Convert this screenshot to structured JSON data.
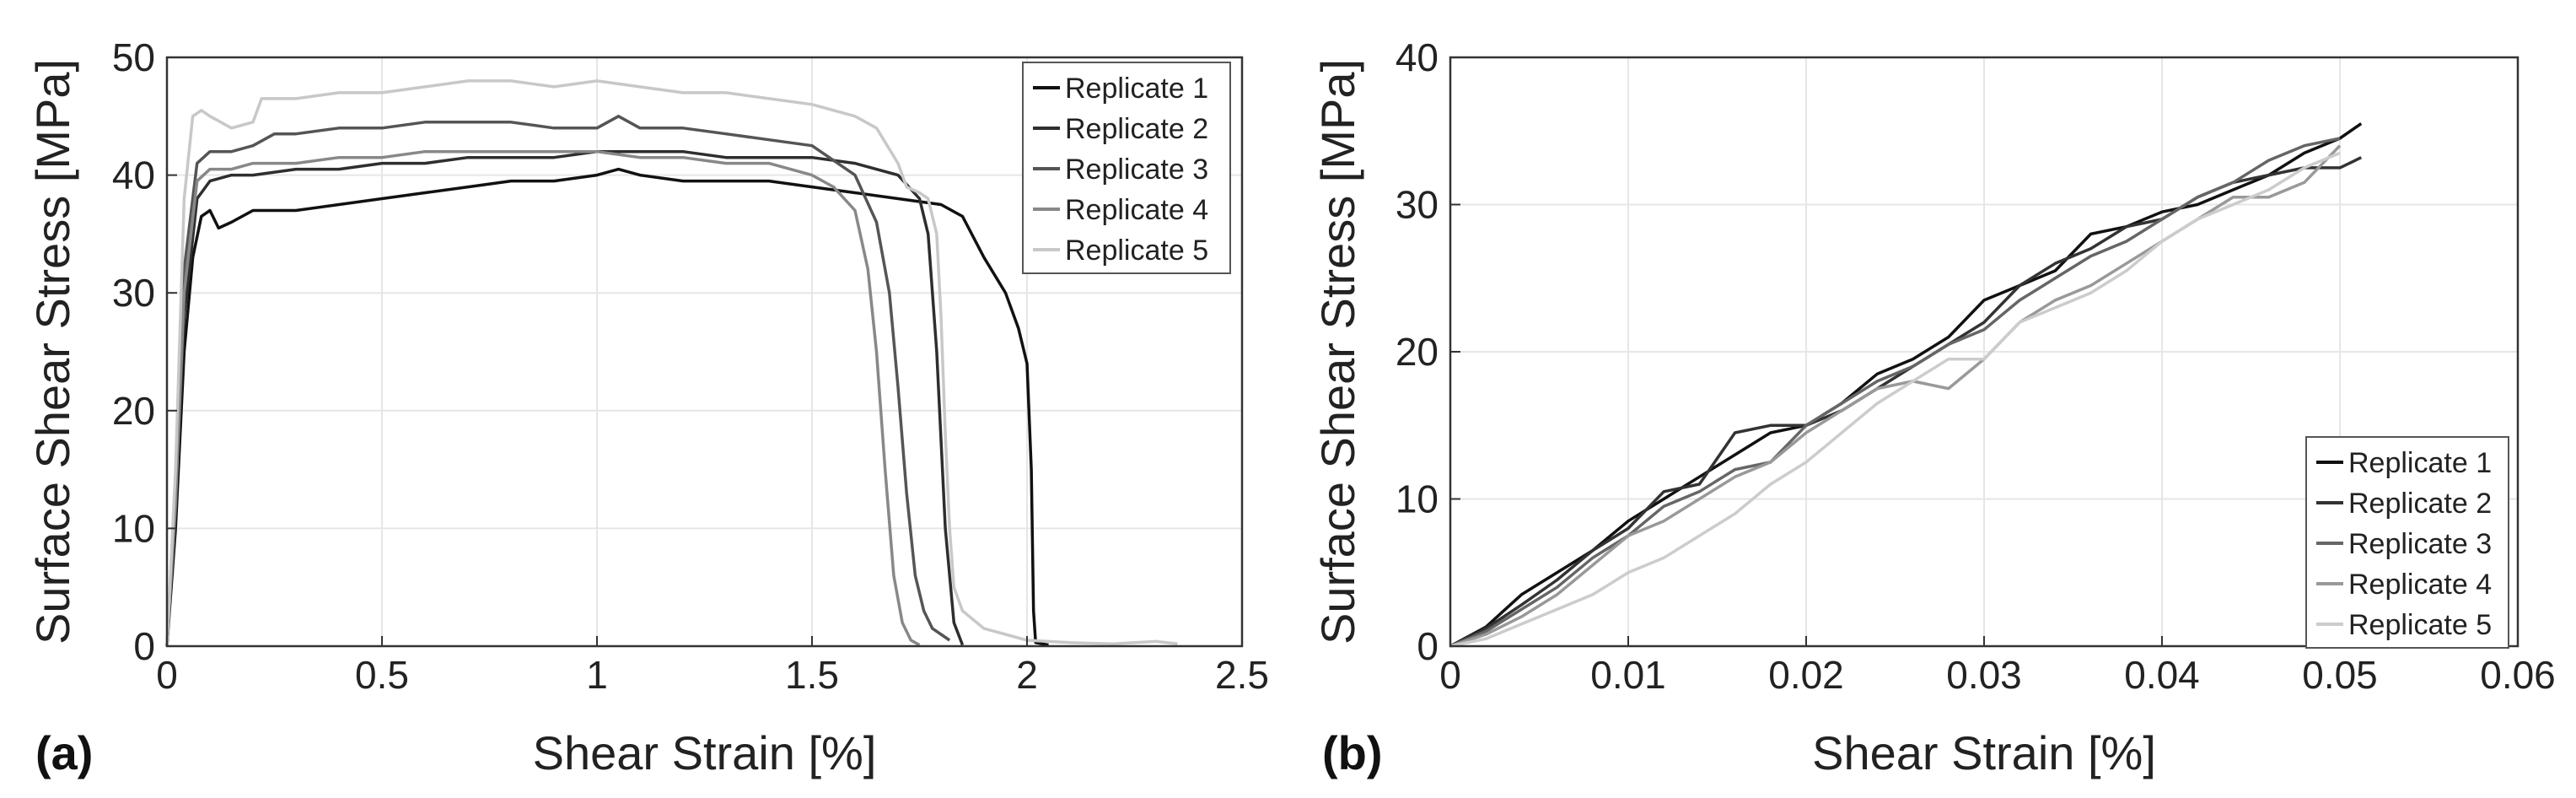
{
  "chart_data": [
    {
      "panel_label": "(a)",
      "type": "line",
      "xlabel": "Shear Strain [%]",
      "ylabel": "Surface Shear Stress [MPa]",
      "xlim": [
        0,
        2.5
      ],
      "ylim": [
        0,
        50
      ],
      "xticks": [
        "0",
        "0.5",
        "1",
        "1.5",
        "2",
        "2.5"
      ],
      "yticks": [
        "0",
        "10",
        "20",
        "30",
        "40",
        "50"
      ],
      "grid": true,
      "legend_position": "top-right",
      "series": [
        {
          "name": "Replicate 1",
          "color": "#111111",
          "x": [
            0,
            0.02,
            0.04,
            0.06,
            0.08,
            0.1,
            0.12,
            0.15,
            0.2,
            0.3,
            0.4,
            0.5,
            0.6,
            0.7,
            0.8,
            0.9,
            1.0,
            1.05,
            1.1,
            1.2,
            1.3,
            1.4,
            1.5,
            1.6,
            1.7,
            1.8,
            1.85,
            1.9,
            1.95,
            1.98,
            2.0,
            2.01,
            2.015,
            2.02,
            2.05
          ],
          "y": [
            0,
            10,
            25,
            33,
            36.5,
            37,
            35.5,
            36,
            37,
            37,
            37.5,
            38,
            38.5,
            39,
            39.5,
            39.5,
            40,
            40.5,
            40,
            39.5,
            39.5,
            39.5,
            39,
            38.5,
            38,
            37.5,
            36.5,
            33,
            30,
            27,
            24,
            15,
            3,
            0.3,
            0.1
          ]
        },
        {
          "name": "Replicate 2",
          "color": "#2e2e2e",
          "x": [
            0,
            0.02,
            0.04,
            0.07,
            0.1,
            0.15,
            0.2,
            0.3,
            0.4,
            0.5,
            0.6,
            0.7,
            0.8,
            0.9,
            1.0,
            1.1,
            1.2,
            1.3,
            1.4,
            1.5,
            1.6,
            1.7,
            1.75,
            1.77,
            1.79,
            1.81,
            1.83,
            1.85
          ],
          "y": [
            0,
            12,
            28,
            38,
            39.5,
            40,
            40,
            40.5,
            40.5,
            41,
            41,
            41.5,
            41.5,
            41.5,
            42,
            42,
            42,
            41.5,
            41.5,
            41.5,
            41,
            40,
            38,
            35,
            25,
            10,
            2,
            0.1
          ]
        },
        {
          "name": "Replicate 3",
          "color": "#555555",
          "x": [
            0,
            0.02,
            0.04,
            0.07,
            0.1,
            0.15,
            0.2,
            0.25,
            0.3,
            0.4,
            0.5,
            0.6,
            0.7,
            0.8,
            0.9,
            1.0,
            1.05,
            1.1,
            1.2,
            1.3,
            1.4,
            1.5,
            1.6,
            1.65,
            1.68,
            1.7,
            1.72,
            1.74,
            1.76,
            1.78,
            1.8,
            1.82
          ],
          "y": [
            0,
            14,
            32,
            41,
            42,
            42,
            42.5,
            43.5,
            43.5,
            44,
            44,
            44.5,
            44.5,
            44.5,
            44,
            44,
            45,
            44,
            44,
            43.5,
            43,
            42.5,
            40,
            36,
            30,
            22,
            13,
            6,
            3,
            1.5,
            1,
            0.5
          ]
        },
        {
          "name": "Replicate 4",
          "color": "#888888",
          "x": [
            0,
            0.02,
            0.04,
            0.07,
            0.1,
            0.15,
            0.2,
            0.3,
            0.4,
            0.5,
            0.6,
            0.7,
            0.8,
            0.9,
            1.0,
            1.1,
            1.2,
            1.3,
            1.4,
            1.5,
            1.55,
            1.6,
            1.63,
            1.65,
            1.67,
            1.69,
            1.71,
            1.73,
            1.75
          ],
          "y": [
            0,
            12,
            30,
            39.5,
            40.5,
            40.5,
            41,
            41,
            41.5,
            41.5,
            42,
            42,
            42,
            42,
            42,
            41.5,
            41.5,
            41,
            41,
            40,
            39,
            37,
            32,
            25,
            15,
            6,
            2,
            0.5,
            0.1
          ]
        },
        {
          "name": "Replicate 5",
          "color": "#c8c8c8",
          "x": [
            0,
            0.02,
            0.04,
            0.06,
            0.08,
            0.1,
            0.15,
            0.2,
            0.22,
            0.3,
            0.4,
            0.5,
            0.6,
            0.7,
            0.8,
            0.9,
            1.0,
            1.1,
            1.2,
            1.3,
            1.4,
            1.5,
            1.6,
            1.65,
            1.7,
            1.72,
            1.75,
            1.77,
            1.79,
            1.8,
            1.81,
            1.82,
            1.83,
            1.85,
            1.9,
            2.0,
            2.1,
            2.2,
            2.3,
            2.35
          ],
          "y": [
            0,
            15,
            38,
            45,
            45.5,
            45,
            44,
            44.5,
            46.5,
            46.5,
            47,
            47,
            47.5,
            48,
            48,
            47.5,
            48,
            47.5,
            47,
            47,
            46.5,
            46,
            45,
            44,
            41,
            39,
            38.5,
            38,
            35,
            28,
            18,
            10,
            5,
            3,
            1.5,
            0.5,
            0.3,
            0.2,
            0.4,
            0.2
          ]
        }
      ]
    },
    {
      "panel_label": "(b)",
      "type": "line",
      "xlabel": "Shear Strain [%]",
      "ylabel": "Surface Shear Stress [MPa]",
      "xlim": [
        0,
        0.06
      ],
      "ylim": [
        0,
        40
      ],
      "xticks": [
        "0",
        "0.01",
        "0.02",
        "0.03",
        "0.04",
        "0.05",
        "0.06"
      ],
      "yticks": [
        "0",
        "10",
        "20",
        "30",
        "40"
      ],
      "grid": true,
      "legend_position": "bottom-right",
      "series": [
        {
          "name": "Replicate 1",
          "color": "#111111",
          "x": [
            0,
            0.002,
            0.004,
            0.006,
            0.008,
            0.01,
            0.012,
            0.014,
            0.016,
            0.018,
            0.02,
            0.022,
            0.024,
            0.026,
            0.028,
            0.03,
            0.032,
            0.034,
            0.036,
            0.038,
            0.04,
            0.042,
            0.044,
            0.046,
            0.048,
            0.05,
            0.0512
          ],
          "y": [
            0,
            1.3,
            3.5,
            5,
            6.5,
            8.5,
            10,
            11.5,
            13,
            14.5,
            15,
            16.5,
            18.5,
            19.5,
            21,
            23.5,
            24.5,
            25.5,
            28,
            28.5,
            29.5,
            30,
            31,
            32,
            33.5,
            34.5,
            35.5
          ]
        },
        {
          "name": "Replicate 2",
          "color": "#333333",
          "x": [
            0,
            0.002,
            0.004,
            0.006,
            0.008,
            0.01,
            0.012,
            0.014,
            0.016,
            0.018,
            0.02,
            0.022,
            0.024,
            0.026,
            0.028,
            0.03,
            0.032,
            0.034,
            0.036,
            0.038,
            0.04,
            0.042,
            0.044,
            0.046,
            0.048,
            0.05,
            0.0512
          ],
          "y": [
            0,
            1.2,
            2.8,
            4.5,
            6.5,
            8,
            10.5,
            11,
            14.5,
            15,
            15,
            16,
            17.5,
            19,
            20.5,
            22,
            24.5,
            26,
            27,
            28.5,
            29,
            30.5,
            31.5,
            32,
            32.5,
            32.5,
            33.2
          ]
        },
        {
          "name": "Replicate 3",
          "color": "#666666",
          "x": [
            0,
            0.002,
            0.004,
            0.006,
            0.008,
            0.01,
            0.012,
            0.014,
            0.016,
            0.018,
            0.02,
            0.022,
            0.024,
            0.026,
            0.028,
            0.03,
            0.032,
            0.034,
            0.036,
            0.038,
            0.04,
            0.042,
            0.044,
            0.046,
            0.048,
            0.05
          ],
          "y": [
            0,
            1,
            2.5,
            4,
            6,
            7.5,
            9.5,
            10.5,
            12,
            12.5,
            15,
            16.5,
            18,
            19,
            20.5,
            21.5,
            23.5,
            25,
            26.5,
            27.5,
            29,
            30.5,
            31.5,
            33,
            34,
            34.5
          ]
        },
        {
          "name": "Replicate 4",
          "color": "#999999",
          "x": [
            0,
            0.002,
            0.004,
            0.006,
            0.008,
            0.01,
            0.012,
            0.014,
            0.016,
            0.018,
            0.02,
            0.022,
            0.024,
            0.026,
            0.028,
            0.03,
            0.032,
            0.034,
            0.036,
            0.038,
            0.04,
            0.042,
            0.044,
            0.046,
            0.048,
            0.05
          ],
          "y": [
            0,
            0.8,
            2,
            3.5,
            5.5,
            7.5,
            8.5,
            10,
            11.5,
            12.5,
            14.5,
            16,
            17.5,
            18,
            17.5,
            19.5,
            22,
            23.5,
            24.5,
            26,
            27.5,
            29,
            30.5,
            30.5,
            31.5,
            34
          ]
        },
        {
          "name": "Replicate 5",
          "color": "#cccccc",
          "x": [
            0,
            0.002,
            0.004,
            0.006,
            0.008,
            0.01,
            0.012,
            0.014,
            0.016,
            0.018,
            0.02,
            0.022,
            0.024,
            0.026,
            0.028,
            0.03,
            0.032,
            0.034,
            0.036,
            0.038,
            0.04,
            0.042,
            0.044,
            0.046,
            0.048,
            0.05
          ],
          "y": [
            0,
            0.5,
            1.5,
            2.5,
            3.5,
            5,
            6,
            7.5,
            9,
            11,
            12.5,
            14.5,
            16.5,
            18,
            19.5,
            19.5,
            22,
            23,
            24,
            25.5,
            27.5,
            29,
            30,
            31,
            32.5,
            33.5
          ]
        }
      ]
    }
  ]
}
